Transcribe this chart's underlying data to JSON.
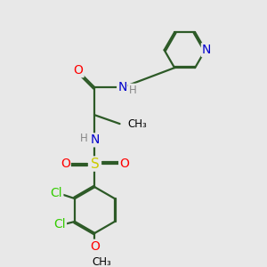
{
  "background_color": "#e8e8e8",
  "bond_color": "#2d5a27",
  "bond_width": 1.6,
  "atom_colors": {
    "N": "#0000cc",
    "O": "#ff0000",
    "S": "#cccc00",
    "Cl": "#33cc00",
    "C": "#000000",
    "H": "#888888"
  },
  "font_size_atom": 10,
  "font_size_small": 8.5
}
